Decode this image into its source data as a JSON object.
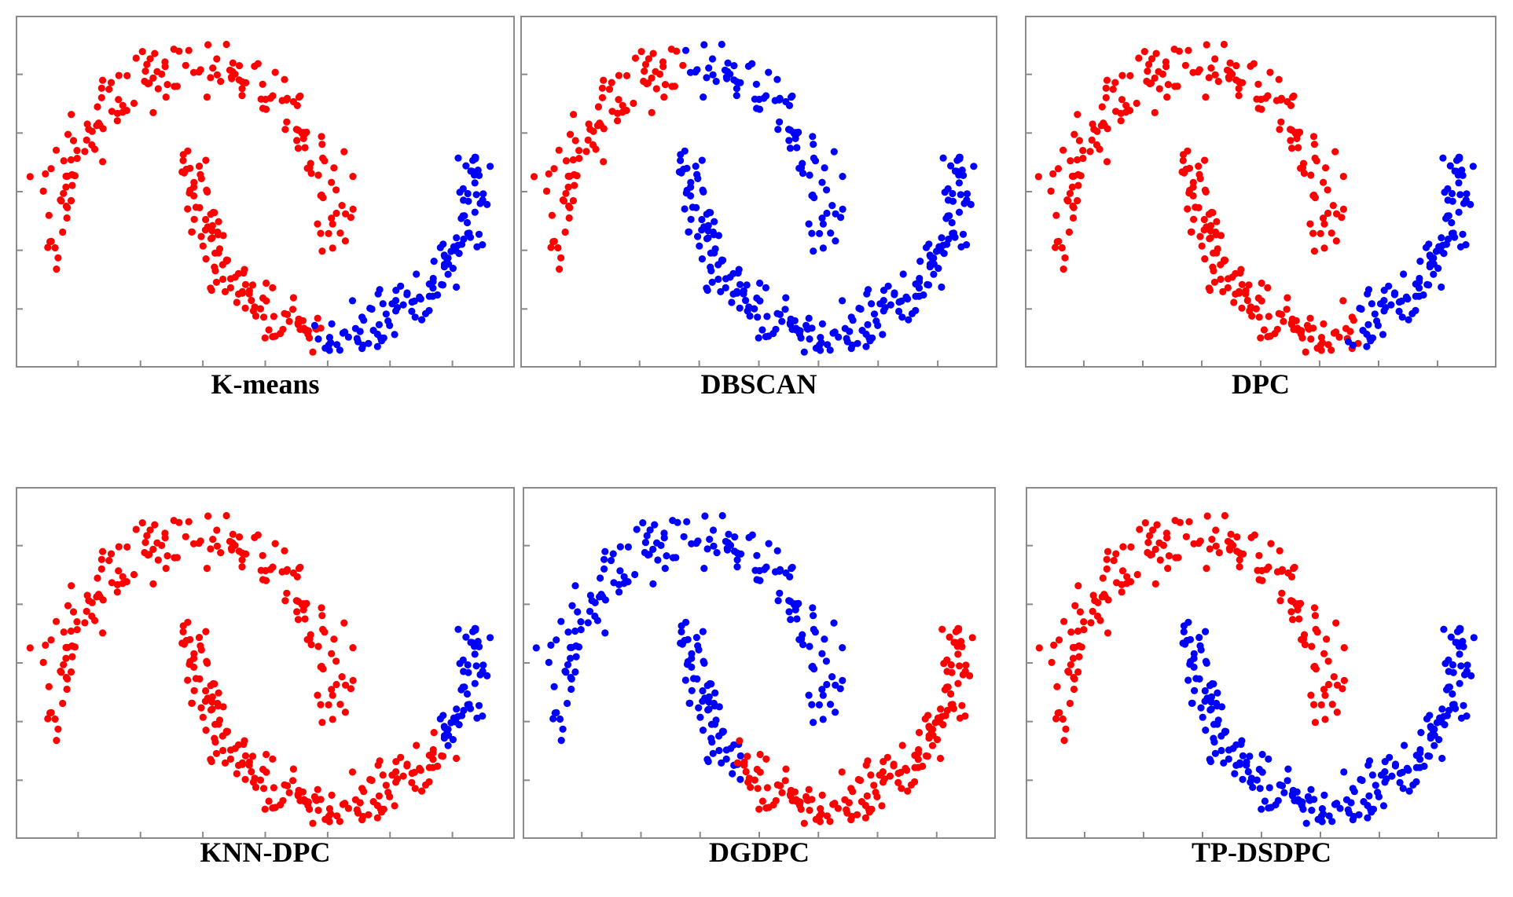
{
  "colors": {
    "cluster_a": "#ff0000",
    "cluster_b": "#0000ff"
  },
  "chart_data": [
    {
      "type": "scatter",
      "title": "K-means",
      "xlabel": "",
      "ylabel": "",
      "grid": false,
      "split": {
        "rule": "t",
        "value": 0.47
      }
    },
    {
      "type": "scatter",
      "title": "DBSCAN",
      "xlabel": "",
      "ylabel": "",
      "grid": false,
      "split": {
        "rule": "xlt",
        "value": 1.75
      }
    },
    {
      "type": "scatter",
      "title": "DPC",
      "xlabel": "",
      "ylabel": "",
      "grid": false,
      "split": {
        "rule": "t",
        "value": 0.56
      }
    },
    {
      "type": "scatter",
      "title": "KNN-DPC",
      "xlabel": "",
      "ylabel": "",
      "grid": false,
      "split": {
        "rule": "t",
        "value": 0.77
      }
    },
    {
      "type": "scatter",
      "title": "DGDPC",
      "xlabel": "",
      "ylabel": "",
      "grid": false,
      "split": {
        "rule": "xlt_inv",
        "value": 1.75,
        "t_value": 0.52
      }
    },
    {
      "type": "scatter",
      "title": "TP-DSDPC",
      "xlabel": "",
      "ylabel": "",
      "grid": false,
      "split": {
        "rule": "arc",
        "value": 0
      }
    }
  ]
}
